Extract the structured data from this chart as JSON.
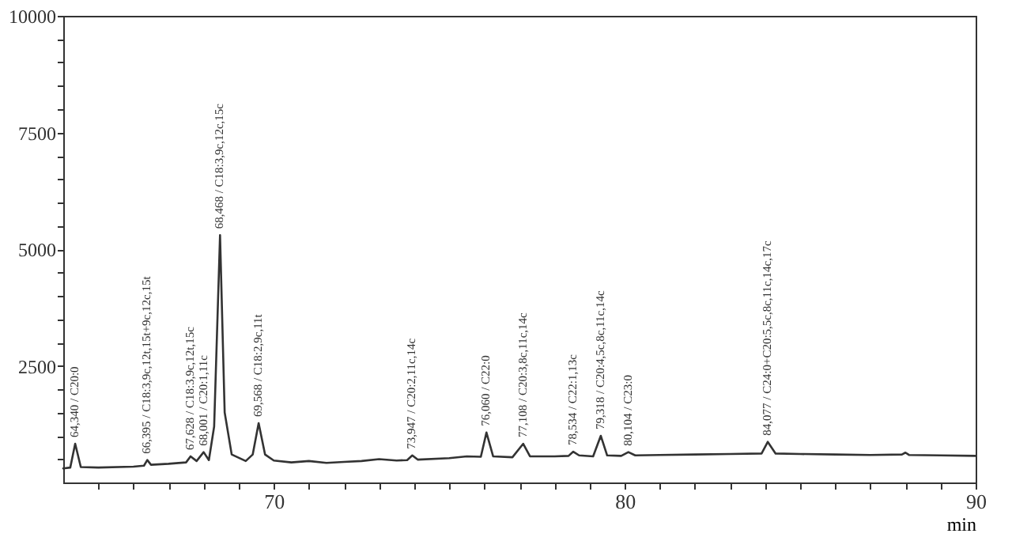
{
  "chart_data": {
    "type": "line",
    "xlabel": "min",
    "x": [
      64.0,
      64.2,
      64.34,
      64.5,
      65,
      66,
      66.3,
      66.395,
      66.5,
      67,
      67.5,
      67.628,
      67.8,
      68.001,
      68.15,
      68.3,
      68.468,
      68.6,
      68.8,
      69.2,
      69.4,
      69.568,
      69.75,
      70,
      70.5,
      71,
      71.5,
      72,
      72.5,
      73,
      73.5,
      73.8,
      73.947,
      74.1,
      75,
      75.5,
      75.9,
      76.06,
      76.25,
      76.8,
      77.108,
      77.3,
      78,
      78.4,
      78.534,
      78.7,
      79.1,
      79.318,
      79.5,
      79.9,
      80.104,
      80.3,
      81,
      82,
      83,
      83.9,
      84.077,
      84.3,
      85,
      86,
      87,
      87.9,
      88,
      88.1,
      89,
      90
    ],
    "series": [
      {
        "color": "#333333",
        "values": [
          300,
          320,
          830,
          330,
          320,
          340,
          360,
          480,
          380,
          400,
          430,
          560,
          460,
          650,
          480,
          1200,
          5300,
          1500,
          600,
          460,
          600,
          1270,
          600,
          470,
          430,
          460,
          420,
          440,
          460,
          500,
          470,
          480,
          580,
          490,
          520,
          560,
          550,
          1070,
          560,
          540,
          830,
          560,
          560,
          570,
          660,
          580,
          560,
          1000,
          580,
          570,
          650,
          580,
          590,
          600,
          610,
          620,
          870,
          620,
          610,
          600,
          590,
          600,
          640,
          590,
          580,
          570
        ]
      }
    ],
    "xlim": [
      64,
      90
    ],
    "xticks": [
      {
        "value": 65,
        "label": null
      },
      {
        "value": 66,
        "label": null
      },
      {
        "value": 67,
        "label": null
      },
      {
        "value": 68,
        "label": null
      },
      {
        "value": 69,
        "label": null
      },
      70,
      {
        "value": 71,
        "label": null
      },
      {
        "value": 72,
        "label": null
      },
      {
        "value": 73,
        "label": null
      },
      {
        "value": 74,
        "label": null
      },
      {
        "value": 75,
        "label": null
      },
      {
        "value": 76,
        "label": null
      },
      {
        "value": 77,
        "label": null
      },
      {
        "value": 78,
        "label": null
      },
      {
        "value": 79,
        "label": null
      },
      80,
      {
        "value": 81,
        "label": null
      },
      {
        "value": 82,
        "label": null
      },
      {
        "value": 83,
        "label": null
      },
      {
        "value": 84,
        "label": null
      },
      {
        "value": 85,
        "label": null
      },
      {
        "value": 86,
        "label": null
      },
      {
        "value": 87,
        "label": null
      },
      {
        "value": 88,
        "label": null
      },
      {
        "value": 89,
        "label": null
      },
      90
    ],
    "ylim": [
      0,
      10000
    ],
    "yticks": [
      {
        "value": 500,
        "label": null
      },
      {
        "value": 1000,
        "label": null
      },
      {
        "value": 1500,
        "label": null
      },
      {
        "value": 2000,
        "label": null
      },
      2500,
      {
        "value": 3000,
        "label": null
      },
      {
        "value": 3500,
        "label": null
      },
      {
        "value": 4000,
        "label": null
      },
      {
        "value": 4500,
        "label": null
      },
      5000,
      {
        "value": 5500,
        "label": null
      },
      {
        "value": 6000,
        "label": null
      },
      {
        "value": 6500,
        "label": null
      },
      {
        "value": 7000,
        "label": null
      },
      7500,
      {
        "value": 8000,
        "label": null
      },
      {
        "value": 8500,
        "label": null
      },
      {
        "value": 9000,
        "label": null
      },
      {
        "value": 9500,
        "label": null
      },
      10000
    ],
    "grid": false,
    "marker": "none",
    "annotations": [
      {
        "text": "64,340 / C20:0",
        "x": 64.34,
        "y": 830
      },
      {
        "text": "66,395 / C18:3,9c,12t,15t+9c,12c,15t",
        "x": 66.395,
        "y": 480
      },
      {
        "text": "67,628 / C18:3,9c,12t,15c",
        "x": 67.628,
        "y": 560
      },
      {
        "text": "68,001 / C20:1,11c",
        "x": 68.001,
        "y": 650
      },
      {
        "text": "68,468 / C18:3,9c,12c,15c",
        "x": 68.468,
        "y": 5300
      },
      {
        "text": "69,568 / C18:2,9c,11t",
        "x": 69.568,
        "y": 1270
      },
      {
        "text": "73,947 / C20:2,11c,14c",
        "x": 73.947,
        "y": 580
      },
      {
        "text": "76,060 / C22:0",
        "x": 76.06,
        "y": 1070
      },
      {
        "text": "77,108 / C20:3,8c,11c,14c",
        "x": 77.108,
        "y": 830
      },
      {
        "text": "78,534 / C22:1,13c",
        "x": 78.534,
        "y": 660
      },
      {
        "text": "79,318 / C20:4,5c,8c,11c,14c",
        "x": 79.318,
        "y": 1000
      },
      {
        "text": "80,104 / C23:0",
        "x": 80.104,
        "y": 650
      },
      {
        "text": "84,077 / C24:0+C20:5,5c,8c,11c,14c,17c",
        "x": 84.077,
        "y": 870
      }
    ]
  }
}
